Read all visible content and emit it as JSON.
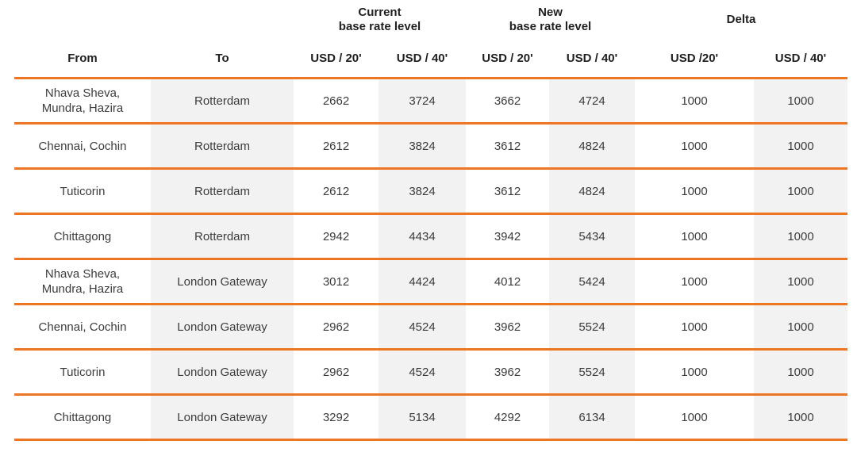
{
  "colors": {
    "accent_orange": "#EE7623",
    "shaded_column": "#F2F2F2",
    "header_text": "#1F1F1F",
    "body_text": "#3C3C3C"
  },
  "header": {
    "groups": [
      {
        "label": "Current\nbase rate level"
      },
      {
        "label": "New\nbase rate level"
      },
      {
        "label": "Delta"
      }
    ],
    "columns": [
      "From",
      "To",
      "USD / 20'",
      "USD / 40'",
      "USD / 20'",
      "USD / 40'",
      "USD /20'",
      "USD / 40'"
    ]
  },
  "rows": [
    {
      "from": "Nhava Sheva,\nMundra, Hazira",
      "to": "Rotterdam",
      "current_20": "2662",
      "current_40": "3724",
      "new_20": "3662",
      "new_40": "4724",
      "delta_20": "1000",
      "delta_40": "1000"
    },
    {
      "from": "Chennai, Cochin",
      "to": "Rotterdam",
      "current_20": "2612",
      "current_40": "3824",
      "new_20": "3612",
      "new_40": "4824",
      "delta_20": "1000",
      "delta_40": "1000"
    },
    {
      "from": "Tuticorin",
      "to": "Rotterdam",
      "current_20": "2612",
      "current_40": "3824",
      "new_20": "3612",
      "new_40": "4824",
      "delta_20": "1000",
      "delta_40": "1000"
    },
    {
      "from": "Chittagong",
      "to": "Rotterdam",
      "current_20": "2942",
      "current_40": "4434",
      "new_20": "3942",
      "new_40": "5434",
      "delta_20": "1000",
      "delta_40": "1000"
    },
    {
      "from": "Nhava Sheva,\nMundra, Hazira",
      "to": "London Gateway",
      "current_20": "3012",
      "current_40": "4424",
      "new_20": "4012",
      "new_40": "5424",
      "delta_20": "1000",
      "delta_40": "1000"
    },
    {
      "from": "Chennai, Cochin",
      "to": "London Gateway",
      "current_20": "2962",
      "current_40": "4524",
      "new_20": "3962",
      "new_40": "5524",
      "delta_20": "1000",
      "delta_40": "1000"
    },
    {
      "from": "Tuticorin",
      "to": "London Gateway",
      "current_20": "2962",
      "current_40": "4524",
      "new_20": "3962",
      "new_40": "5524",
      "delta_20": "1000",
      "delta_40": "1000"
    },
    {
      "from": "Chittagong",
      "to": "London Gateway",
      "current_20": "3292",
      "current_40": "5134",
      "new_20": "4292",
      "new_40": "6134",
      "delta_20": "1000",
      "delta_40": "1000"
    }
  ]
}
